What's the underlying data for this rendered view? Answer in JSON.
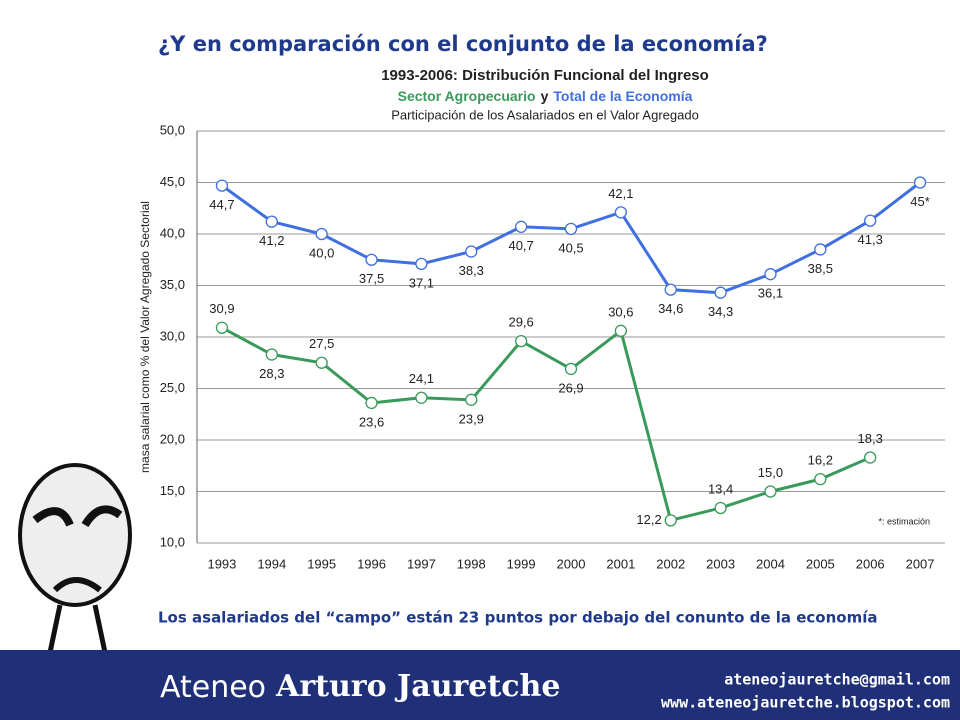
{
  "slide_title": "¿Y en comparación con el conjunto de la economía?",
  "caption": "Los asalariados del “campo” están 23 puntos por debajo del conunto de la economía",
  "footer": {
    "brand_plain": "Ateneo",
    "brand_bold": "Arturo Jauretche",
    "email": "ateneojauretche@gmail.com",
    "blog": "www.ateneojauretche.blogspot.com"
  },
  "chart_data": {
    "type": "line",
    "title": "1993-2006: Distribución Funcional del Ingreso",
    "subtitle_joiner": "y",
    "subtitle2": "Participación de los Asalariados en el Valor Agregado",
    "ylabel": "masa salarial como % del Valor Agregado Sectorial",
    "annotation": "*: estimación",
    "categories": [
      "1993",
      "1994",
      "1995",
      "1996",
      "1997",
      "1998",
      "1999",
      "2000",
      "2001",
      "2002",
      "2003",
      "2004",
      "2005",
      "2006",
      "2007"
    ],
    "series": [
      {
        "name": "Sector Agropecuario",
        "color": "#3a9a5b",
        "values": [
          30.9,
          28.3,
          27.5,
          23.6,
          24.1,
          23.9,
          29.6,
          26.9,
          30.6,
          12.2,
          13.4,
          15.0,
          16.2,
          18.3,
          null
        ],
        "value_labels": [
          "30,9",
          "28,3",
          "27,5",
          "23,6",
          "24,1",
          "23,9",
          "29,6",
          "26,9",
          "30,6",
          "12,2",
          "13,4",
          "15,0",
          "16,2",
          "18,3",
          null
        ]
      },
      {
        "name": "Total de la Economía",
        "color": "#3f6fe0",
        "values": [
          44.7,
          41.2,
          40.0,
          37.5,
          37.1,
          38.3,
          40.7,
          40.5,
          42.1,
          34.6,
          34.3,
          36.1,
          38.5,
          41.3,
          45
        ],
        "value_labels": [
          "44,7",
          "41,2",
          "40,0",
          "37,5",
          "37,1",
          "38,3",
          "40,7",
          "40,5",
          "42,1",
          "34,6",
          "34,3",
          "36,1",
          "38,5",
          "41,3",
          "45*"
        ]
      }
    ],
    "ylim": [
      10,
      50
    ],
    "yticks": [
      {
        "value": 10,
        "label": "10,0"
      },
      {
        "value": 15,
        "label": "15,0"
      },
      {
        "value": 20,
        "label": "20,0"
      },
      {
        "value": 25,
        "label": "25,0"
      },
      {
        "value": 30,
        "label": "30,0"
      },
      {
        "value": 35,
        "label": "35,0"
      },
      {
        "value": 40,
        "label": "40,0"
      },
      {
        "value": 45,
        "label": "45,0"
      },
      {
        "value": 50,
        "label": "50,0"
      }
    ],
    "grid": true
  }
}
